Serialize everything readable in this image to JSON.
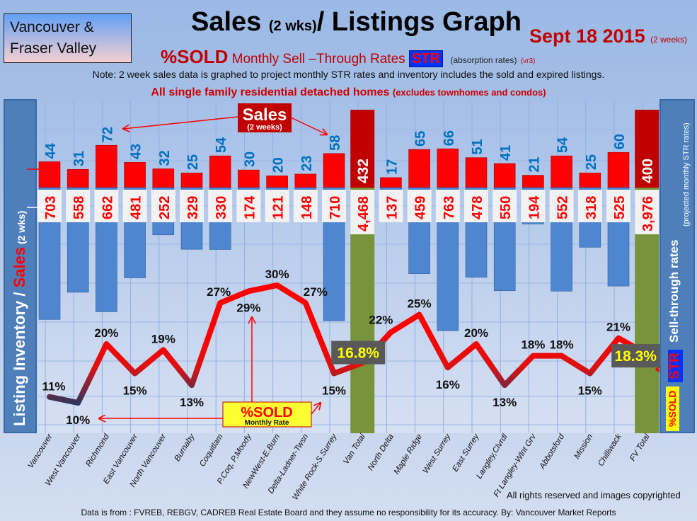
{
  "header": {
    "region": [
      "Vancouver &",
      "Fraser Valley"
    ],
    "title_main": "Sales ",
    "title_small": "(2 wks)",
    "title_rest": "/ Listings Graph",
    "date": "Sept 18 2015",
    "date_note": "(2 weeks)",
    "subtitle_sold": "%SOLD",
    "subtitle_rates": "Monthly Sell –Through Rates",
    "subtitle_str": "STR",
    "subtitle_absorption": "(absorption rates)",
    "subtitle_version": "(vr3)",
    "note": "Note: 2 week sales data is graphed to project monthly STR rates and inventory includes the sold and expired listings.",
    "homes": "All single family residential detached homes",
    "homes_note": "(excludes townhomes and condos)"
  },
  "left_axis": {
    "part1": "Listing Inventory / ",
    "part2": "Sales",
    "part3": " (2  wks)"
  },
  "right_axis": {
    "label": "Sell-through rates",
    "note": "(projected monthly STR rates)",
    "str": "STR",
    "sold": "%SOLD"
  },
  "annotations": {
    "sales_title": "Sales",
    "sales_sub": "(2 weeks)",
    "sold_title": "%SOLD",
    "sold_sub": "Monthly Rate"
  },
  "colors": {
    "sales": "#ff0000",
    "sales_total": "#c00000",
    "inventory": "#4f86d0",
    "inventory_total": "#77933c",
    "str_line_high": "#ff0000",
    "str_line_low": "#1f3864",
    "sales_label": "#0070c0",
    "inventory_label": "#ff0000"
  },
  "chart_data": {
    "type": "bar+line",
    "categories": [
      "Vancouver",
      "West Vancouver",
      "Richmond",
      "East Vancouver",
      "North Vancouver",
      "Burnaby",
      "Coquitlam",
      "P.Coq, P.Moody",
      "NewWest-E.Burn",
      "Delta-Ladner-Twsn",
      "White Rock-S.Surrey",
      "Van Total",
      "North Delta",
      "Maple Ridge",
      "West Surrey",
      "East Surrey",
      "Langley,Clvrdl",
      "Ft Langley-Wlnt Grv",
      "Abbotsford",
      "Mission",
      "Chilliwack",
      "FV Total"
    ],
    "series": [
      {
        "name": "Sales",
        "values": [
          44,
          31,
          72,
          43,
          32,
          25,
          54,
          30,
          20,
          23,
          58,
          432,
          17,
          65,
          66,
          51,
          41,
          21,
          54,
          25,
          60,
          400
        ],
        "labels": [
          "44",
          "31",
          "72",
          "43",
          "32",
          "25",
          "54",
          "30",
          "20",
          "23",
          "58",
          "432",
          "17",
          "65",
          "66",
          "51",
          "41",
          "21",
          "54",
          "25",
          "60",
          "400"
        ]
      },
      {
        "name": "Listing Inventory",
        "values": [
          703,
          558,
          662,
          481,
          252,
          329,
          330,
          174,
          121,
          148,
          710,
          4468,
          137,
          459,
          763,
          478,
          550,
          194,
          552,
          318,
          525,
          3976
        ],
        "labels": [
          "703",
          "558",
          "662",
          "481",
          "252",
          "329",
          "330",
          "174",
          "121",
          "148",
          "710",
          "4,468",
          "137",
          "459",
          "763",
          "478",
          "550",
          "194",
          "552",
          "318",
          "525",
          "3,976"
        ]
      },
      {
        "name": "%SOLD",
        "values": [
          11,
          10,
          20,
          15,
          19,
          13,
          27,
          29,
          30,
          27,
          15,
          16.8,
          22,
          25,
          16,
          20,
          13,
          18,
          18,
          15,
          21,
          18.3
        ],
        "labels": [
          "11%",
          "10%",
          "20%",
          "15%",
          "19%",
          "13%",
          "27%",
          "29%",
          "30%",
          "27%",
          "15%",
          "16.8%",
          "22%",
          "25%",
          "16%",
          "20%",
          "13%",
          "18%",
          "18%",
          "15%",
          "21%",
          "18.3%"
        ]
      }
    ],
    "totals": [
      "Van Total",
      "FV Total"
    ],
    "grid": true
  },
  "footer": {
    "rights": "All rights reserved and  images copyrighted",
    "source": "Data is from : FVREB, REBGV, CADREB Real Estate Board and they assume no responsibility for its accuracy. By: Vancouver Market Reports"
  }
}
